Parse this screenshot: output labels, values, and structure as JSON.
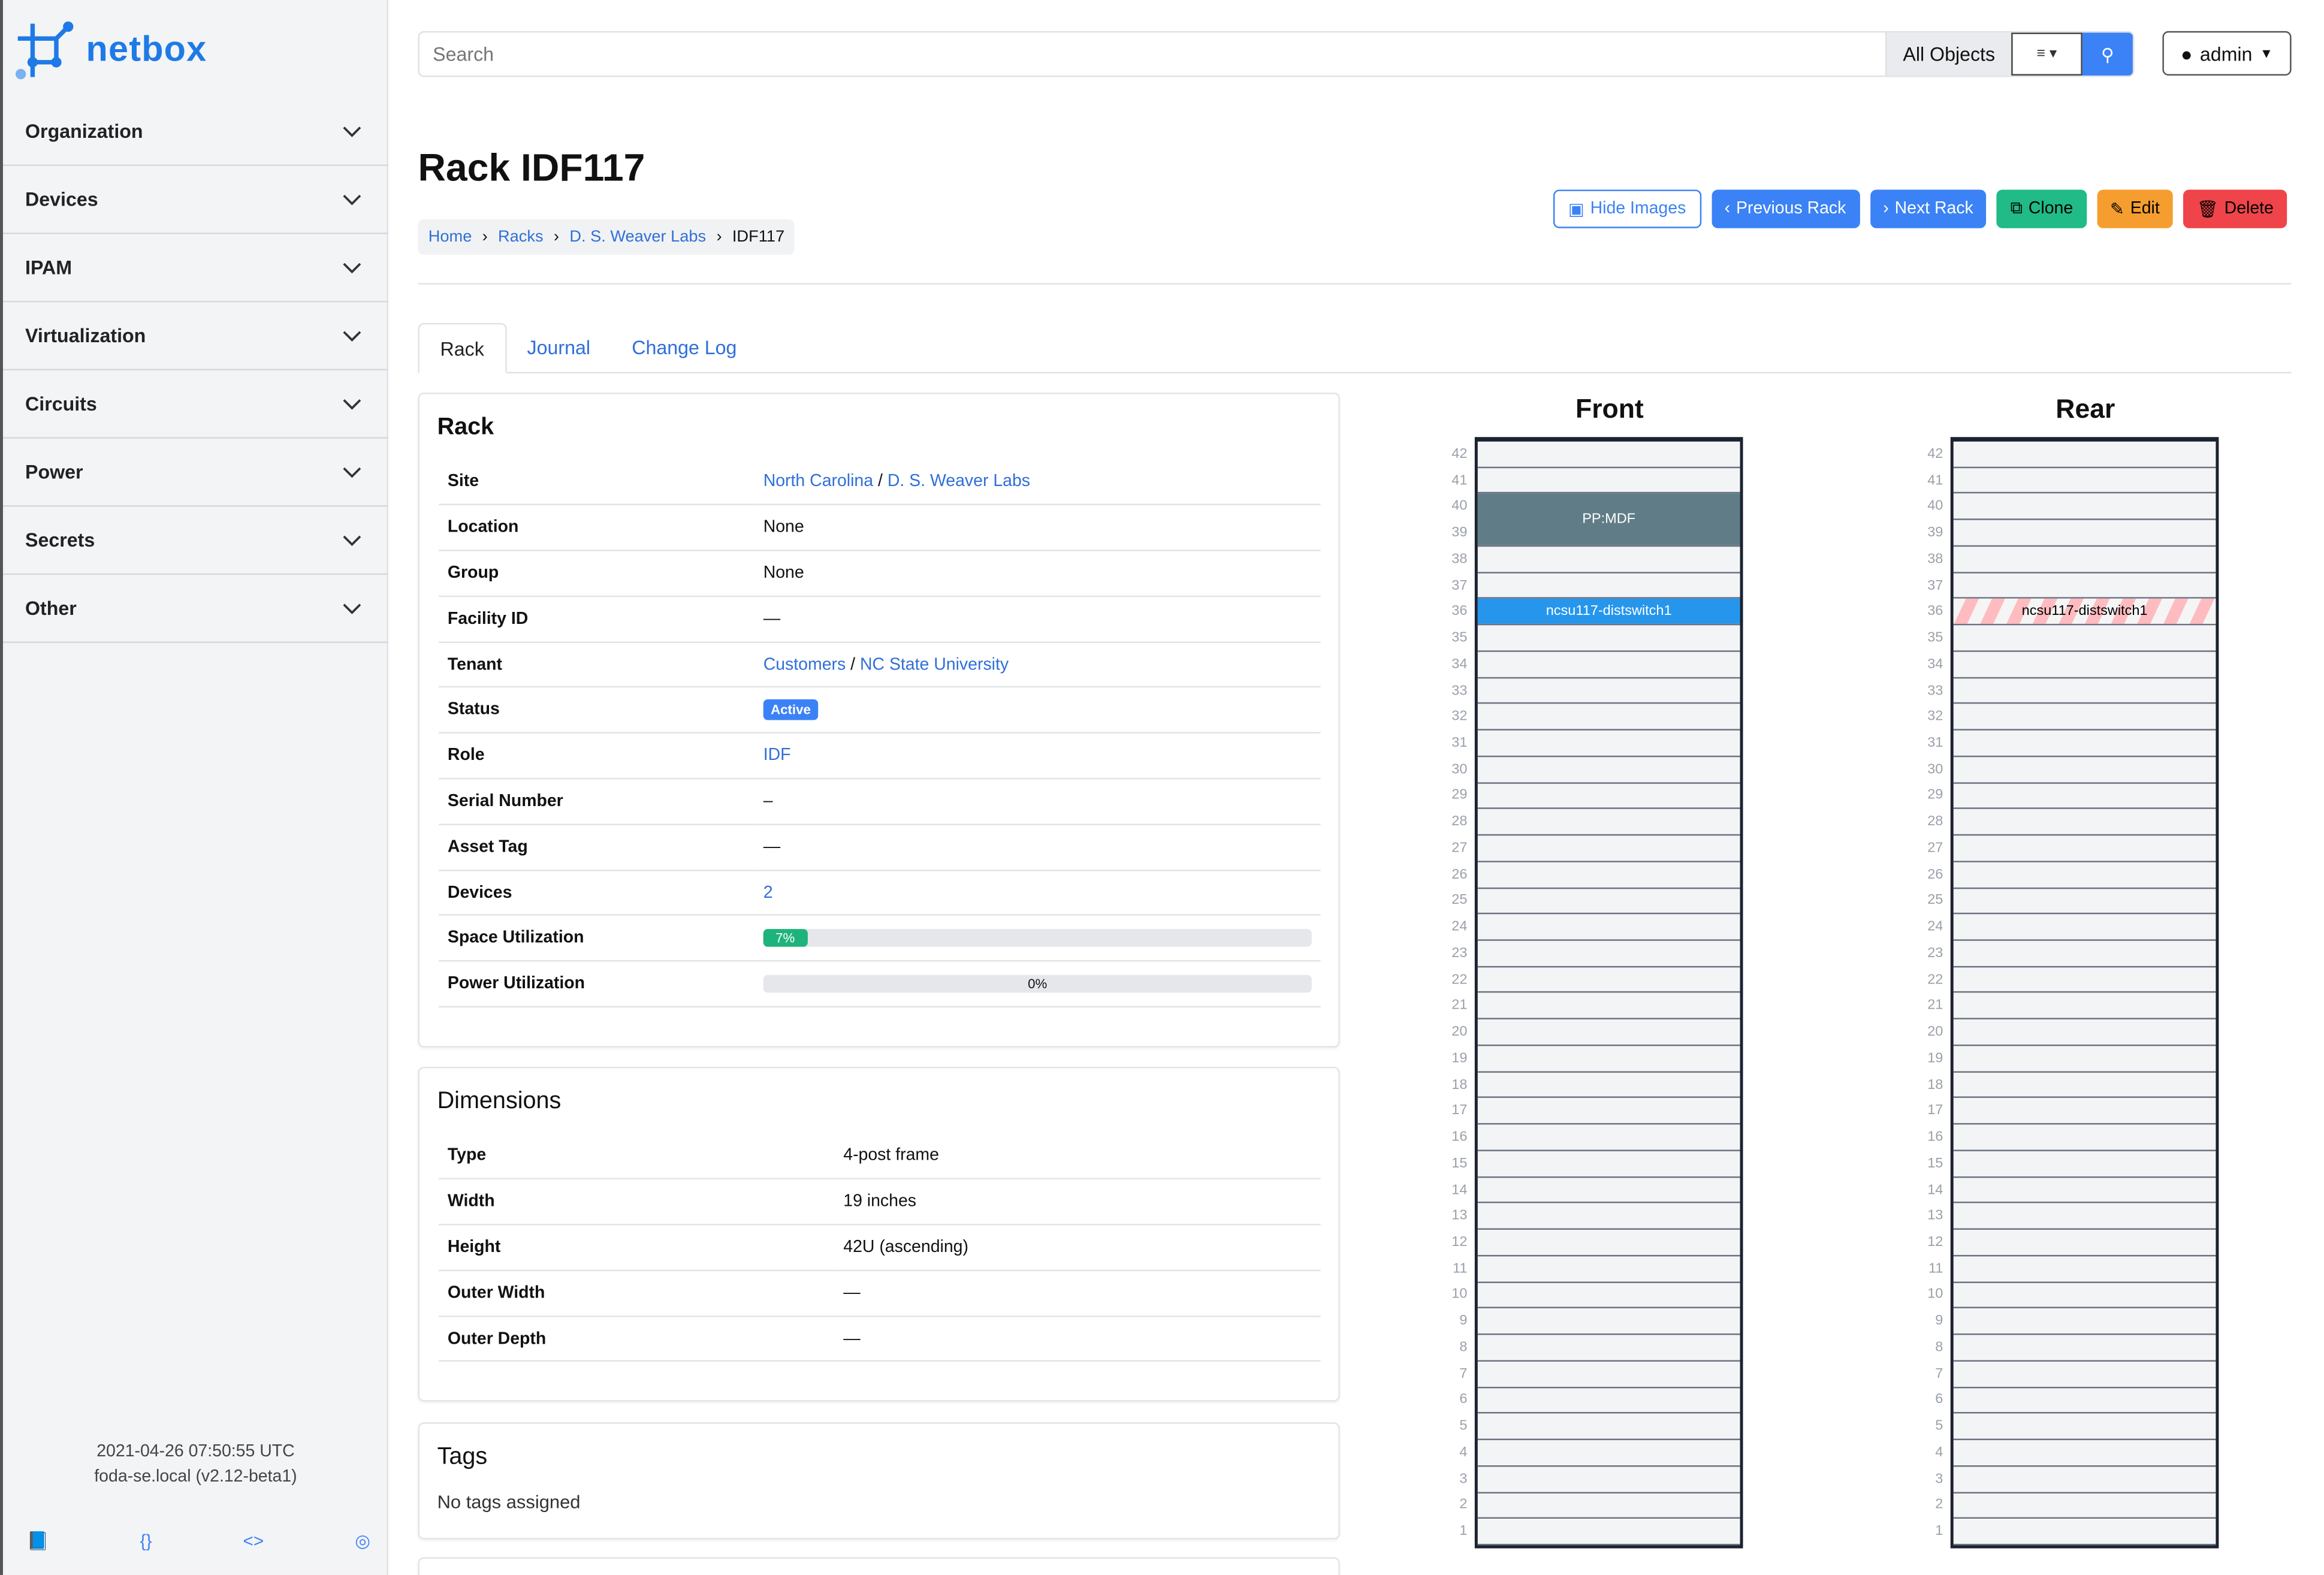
{
  "brand": {
    "name": "netbox",
    "color": "#1e7ae6"
  },
  "sidebar": {
    "items": [
      {
        "label": "Organization"
      },
      {
        "label": "Devices"
      },
      {
        "label": "IPAM"
      },
      {
        "label": "Virtualization"
      },
      {
        "label": "Circuits"
      },
      {
        "label": "Power"
      },
      {
        "label": "Secrets"
      },
      {
        "label": "Other"
      }
    ],
    "footer": {
      "timestamp": "2021-04-26 07:50:55 UTC",
      "host": "foda-se.local (v2.12-beta1)",
      "icons": [
        "book-icon",
        "braces-icon",
        "code-icon",
        "lifebuoy-icon"
      ]
    }
  },
  "header": {
    "search_placeholder": "Search",
    "scope": "All Objects",
    "user": "admin"
  },
  "page": {
    "title": "Rack IDF117",
    "breadcrumb": [
      "Home",
      "Racks",
      "D. S. Weaver Labs",
      "IDF117"
    ],
    "buttons": [
      {
        "label": "Hide Images",
        "color": "#3b82f6"
      },
      {
        "label": "Previous Rack",
        "color": "#3b82f6"
      },
      {
        "label": "Next Rack",
        "color": "#3b82f6"
      },
      {
        "label": "Clone",
        "color": "#20bb86"
      },
      {
        "label": "Edit",
        "color": "#f59e2f"
      },
      {
        "label": "Delete",
        "color": "#ef4449"
      }
    ],
    "tabs": [
      "Rack",
      "Journal",
      "Change Log"
    ]
  },
  "rack_card": {
    "title": "Rack",
    "rows": [
      {
        "label": "Site",
        "links": [
          "North Carolina",
          "D. S. Weaver Labs"
        ]
      },
      {
        "label": "Location",
        "value": "None"
      },
      {
        "label": "Group",
        "value": "None"
      },
      {
        "label": "Facility ID",
        "value": "—"
      },
      {
        "label": "Tenant",
        "links": [
          "Customers",
          "NC State University"
        ]
      },
      {
        "label": "Status",
        "badge": "Active"
      },
      {
        "label": "Role",
        "links": [
          "IDF"
        ]
      },
      {
        "label": "Serial Number",
        "value": "–"
      },
      {
        "label": "Asset Tag",
        "value": "—"
      },
      {
        "label": "Devices",
        "links": [
          "2"
        ]
      },
      {
        "label": "Space Utilization",
        "progress": 7,
        "text": "7%"
      },
      {
        "label": "Power Utilization",
        "progress": 0,
        "text": "0%"
      }
    ]
  },
  "dimensions": {
    "title": "Dimensions",
    "rows": [
      {
        "label": "Type",
        "value": "4-post frame"
      },
      {
        "label": "Width",
        "value": "19 inches"
      },
      {
        "label": "Height",
        "value": "42U (ascending)"
      },
      {
        "label": "Outer Width",
        "value": "—"
      },
      {
        "label": "Outer Depth",
        "value": "—"
      }
    ]
  },
  "tags": {
    "title": "Tags",
    "empty": "No tags assigned"
  },
  "elevations": {
    "units": 42,
    "front": {
      "title": "Front",
      "devices": [
        {
          "name": "PP:MDF",
          "top_u": 40,
          "height_u": 2,
          "color": "#607d87",
          "text": "#ffffff"
        },
        {
          "name": "ncsu117-distswitch1",
          "top_u": 36,
          "height_u": 1,
          "color": "#2596ec",
          "text": "#ffffff"
        }
      ]
    },
    "rear": {
      "title": "Rear",
      "devices": [
        {
          "name": "ncsu117-distswitch1",
          "top_u": 36,
          "height_u": 1,
          "striped": true,
          "color": "#ffbcc0",
          "text": "#000000"
        }
      ]
    }
  }
}
